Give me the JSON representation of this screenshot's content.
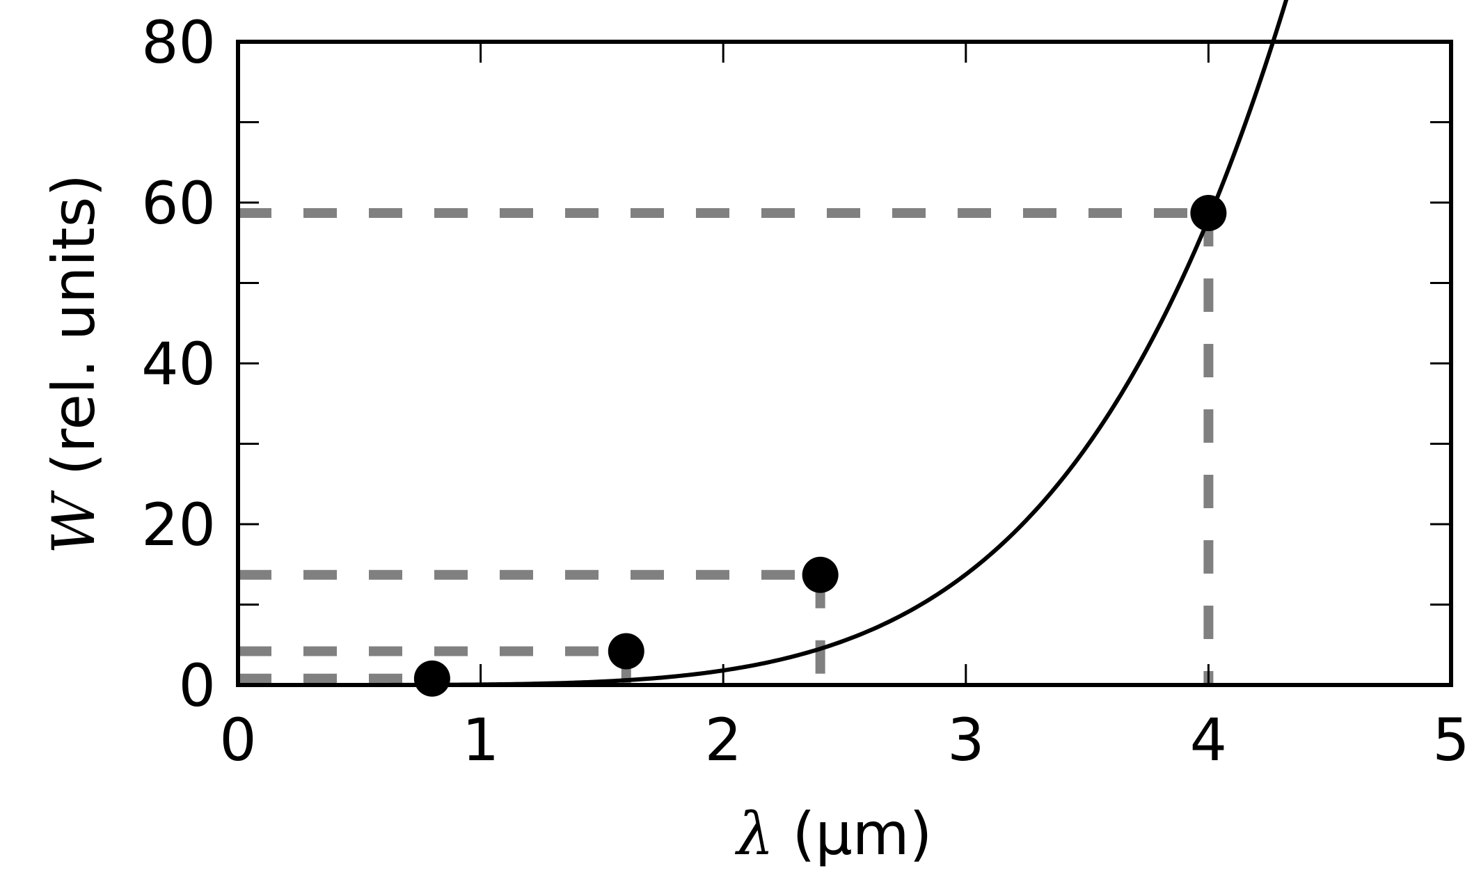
{
  "chart_data": {
    "type": "line",
    "xlabel_symbol": "λ",
    "xlabel_rest": " (μm)",
    "ylabel_symbol": "W",
    "ylabel_rest": " (rel. units)",
    "xlim": [
      0,
      5
    ],
    "ylim": [
      0,
      80
    ],
    "x_ticks": [
      0,
      1,
      2,
      3,
      4,
      5
    ],
    "x_tick_labels": [
      "0",
      "1",
      "2",
      "3",
      "4",
      "5"
    ],
    "y_ticks": [
      0,
      20,
      40,
      60,
      80
    ],
    "y_tick_labels": [
      "0",
      "20",
      "40",
      "60",
      "80"
    ],
    "y_minor_ticks": [
      10,
      30,
      50,
      70
    ],
    "grid": false,
    "curve": {
      "function": "0.0566 * x^5",
      "x_range": [
        0,
        4.55
      ],
      "color": "#000000"
    },
    "points": [
      {
        "x": 0.8,
        "y": 0.8
      },
      {
        "x": 1.6,
        "y": 4.2
      },
      {
        "x": 2.4,
        "y": 13.7
      },
      {
        "x": 4.0,
        "y": 58.7
      }
    ],
    "point_color": "#000000",
    "guide_color": "#808080"
  }
}
